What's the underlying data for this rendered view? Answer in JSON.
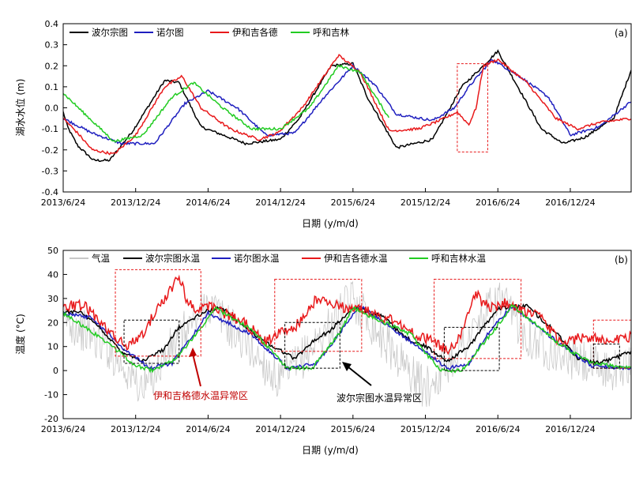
{
  "chart_data": [
    {
      "panel": "a",
      "type": "line",
      "panel_label": "(a)",
      "xlabel": "日期 (y/m/d)",
      "ylabel": "湖水水位 (m)",
      "x_ticks": [
        "2013/6/24",
        "2013/12/24",
        "2014/6/24",
        "2014/12/24",
        "2015/6/24",
        "2015/12/24",
        "2016/6/24",
        "2016/12/24"
      ],
      "ylim": [
        -0.4,
        0.4
      ],
      "y_ticks": [
        "-0.4",
        "-0.3",
        "-0.2",
        "-0.1",
        "0.0",
        "0.1",
        "0.2",
        "0.3",
        "0.4"
      ],
      "legend_position": "top-left",
      "series": [
        {
          "name": "波尔宗图",
          "color": "#000000",
          "x": [
            0,
            0.03,
            0.06,
            0.1,
            0.21,
            0.32,
            0.48,
            0.7,
            0.8,
            0.95,
            1.26,
            1.5,
            1.63,
            1.85,
            2.0,
            2.1,
            2.3,
            2.55,
            2.75,
            2.9,
            3.0,
            3.3,
            3.45,
            3.6,
            3.8,
            3.92
          ],
          "y": [
            -0.02,
            -0.09,
            -0.13,
            -0.18,
            -0.25,
            -0.25,
            -0.11,
            0.13,
            0.12,
            -0.09,
            -0.17,
            -0.15,
            -0.05,
            0.2,
            0.21,
            0.05,
            -0.19,
            -0.15,
            0.1,
            0.2,
            0.27,
            -0.1,
            -0.17,
            -0.14,
            -0.05,
            0.18
          ]
        },
        {
          "name": "诺尔图",
          "color": "#1f1fbf",
          "x": [
            0,
            0.2,
            0.4,
            0.63,
            0.84,
            1.0,
            1.2,
            1.4,
            1.6,
            1.8,
            2.0,
            2.15,
            2.3,
            2.55,
            2.7,
            2.8,
            2.96,
            3.15,
            3.35,
            3.5,
            3.7,
            3.92
          ],
          "y": [
            -0.05,
            -0.12,
            -0.17,
            -0.17,
            0.02,
            0.08,
            0.0,
            -0.13,
            -0.12,
            0.05,
            0.2,
            0.11,
            -0.03,
            -0.06,
            0.0,
            0.1,
            0.23,
            0.15,
            0.05,
            -0.13,
            -0.09,
            0.03
          ]
        },
        {
          "name": "伊和吉各德",
          "color": "#e8191b",
          "x": [
            0,
            0.1,
            0.2,
            0.35,
            0.5,
            0.7,
            0.82,
            0.95,
            1.15,
            1.35,
            1.48,
            1.65,
            1.9,
            2.05,
            2.25,
            2.45,
            2.6,
            2.72,
            2.8,
            2.85,
            2.9,
            3.0,
            3.2,
            3.4,
            3.55,
            3.7,
            3.92
          ],
          "y": [
            -0.05,
            -0.12,
            -0.2,
            -0.22,
            -0.13,
            0.1,
            0.15,
            0.0,
            -0.1,
            -0.15,
            -0.12,
            0.0,
            0.25,
            0.17,
            -0.11,
            -0.1,
            -0.06,
            -0.02,
            -0.08,
            0.0,
            0.2,
            0.23,
            0.12,
            -0.05,
            -0.1,
            -0.07,
            -0.05
          ]
        },
        {
          "name": "呼和吉林",
          "color": "#22cc22",
          "x": [
            0,
            0.15,
            0.35,
            0.55,
            0.75,
            0.9,
            1.1,
            1.3,
            1.5,
            1.7,
            1.9,
            2.05,
            2.25
          ],
          "y": [
            0.07,
            -0.03,
            -0.16,
            -0.13,
            0.05,
            0.12,
            0.0,
            -0.1,
            -0.1,
            0.0,
            0.2,
            0.17,
            -0.05
          ]
        }
      ],
      "highlight_box": {
        "x_range": [
          2.72,
          2.93
        ],
        "y_range": [
          -0.21,
          0.21
        ],
        "style": "red dashed"
      }
    },
    {
      "panel": "b",
      "type": "line",
      "panel_label": "(b)",
      "xlabel": "日期 (y/m/d)",
      "ylabel": "温度 (°C)",
      "x_ticks": [
        "2013/6/24",
        "2013/12/24",
        "2014/6/24",
        "2014/12/24",
        "2015/6/24",
        "2015/12/24",
        "2016/6/24",
        "2016/12/24"
      ],
      "ylim": [
        -20,
        50
      ],
      "y_ticks": [
        "-20",
        "-10",
        "0",
        "10",
        "20",
        "30",
        "40",
        "50"
      ],
      "legend_position": "top",
      "series": [
        {
          "name": "气温",
          "color": "#c8c8c8",
          "x": [
            0,
            0.3,
            0.55,
            0.75,
            1.0,
            1.25,
            1.5,
            1.75,
            2.0,
            2.25,
            2.5,
            2.75,
            3.0,
            3.25,
            3.5,
            3.75,
            3.92
          ],
          "y": [
            22,
            10,
            -8,
            10,
            28,
            12,
            -5,
            12,
            30,
            10,
            -8,
            10,
            30,
            12,
            5,
            0,
            2
          ]
        },
        {
          "name": "波尔宗图水温",
          "color": "#000000",
          "x": [
            0,
            0.1,
            0.25,
            0.4,
            0.55,
            0.7,
            0.78,
            0.85,
            1.0,
            1.1,
            1.3,
            1.45,
            1.6,
            1.72,
            1.85,
            2.0,
            2.2,
            2.35,
            2.5,
            2.65,
            2.8,
            2.9,
            3.0,
            3.2,
            3.4,
            3.55,
            3.7,
            3.92
          ],
          "y": [
            24,
            25,
            18,
            8,
            4,
            9,
            17,
            20,
            25,
            26,
            16,
            10,
            5,
            12,
            17,
            26,
            23,
            14,
            10,
            4,
            10,
            18,
            26,
            27,
            16,
            5,
            3,
            8
          ]
        },
        {
          "name": "诺尔图水温",
          "color": "#1f1fbf",
          "x": [
            0,
            0.2,
            0.4,
            0.6,
            0.75,
            0.9,
            1.0,
            1.3,
            1.55,
            1.75,
            1.9,
            2.05,
            2.4,
            2.65,
            2.8,
            2.95,
            3.1,
            3.45,
            3.65,
            3.92
          ],
          "y": [
            24,
            22,
            10,
            1,
            3,
            15,
            24,
            15,
            1,
            3,
            15,
            27,
            12,
            1,
            3,
            17,
            27,
            10,
            2,
            1
          ]
        },
        {
          "name": "伊和吉各德水温",
          "color": "#e8191b",
          "x": [
            0,
            0.15,
            0.35,
            0.45,
            0.55,
            0.65,
            0.8,
            0.85,
            0.9,
            1.0,
            1.25,
            1.4,
            1.5,
            1.6,
            1.75,
            1.85,
            1.95,
            2.05,
            2.3,
            2.45,
            2.55,
            2.65,
            2.75,
            2.85,
            2.9,
            2.95,
            3.05,
            3.3,
            3.45,
            3.55,
            3.7,
            3.92
          ],
          "y": [
            27,
            27,
            14,
            10,
            15,
            26,
            39,
            30,
            26,
            27,
            20,
            12,
            16,
            18,
            30,
            28,
            26,
            26,
            20,
            14,
            13,
            8,
            15,
            32,
            28,
            26,
            28,
            22,
            10,
            14,
            13,
            14
          ]
        },
        {
          "name": "呼和吉林水温",
          "color": "#22cc22",
          "x": [
            0,
            0.3,
            0.5,
            0.62,
            0.78,
            0.95,
            1.05,
            1.3,
            1.55,
            1.72,
            1.9,
            2.0,
            2.4,
            2.6,
            2.75,
            2.95,
            3.1,
            3.45,
            3.65,
            3.92
          ],
          "y": [
            24,
            12,
            2,
            0,
            5,
            18,
            26,
            17,
            1,
            1,
            15,
            26,
            15,
            0,
            0,
            15,
            27,
            10,
            3,
            1
          ]
        }
      ],
      "highlight_boxes": [
        {
          "x_range": [
            0.36,
            0.95
          ],
          "y_range": [
            6,
            42
          ],
          "style": "red dashed"
        },
        {
          "x_range": [
            1.46,
            2.06
          ],
          "y_range": [
            8,
            38
          ],
          "style": "red dashed"
        },
        {
          "x_range": [
            2.56,
            3.16
          ],
          "y_range": [
            5,
            38
          ],
          "style": "red dashed"
        },
        {
          "x_range": [
            3.66,
            3.92
          ],
          "y_range": [
            1,
            21
          ],
          "style": "red dashed"
        },
        {
          "x_range": [
            0.42,
            0.8
          ],
          "y_range": [
            3,
            21
          ],
          "style": "black dashed"
        },
        {
          "x_range": [
            1.53,
            1.91
          ],
          "y_range": [
            1,
            20
          ],
          "style": "black dashed"
        },
        {
          "x_range": [
            2.63,
            3.01
          ],
          "y_range": [
            0,
            18
          ],
          "style": "black dashed"
        },
        {
          "x_range": [
            3.66,
            3.84
          ],
          "y_range": [
            1,
            11
          ],
          "style": "black dashed"
        }
      ],
      "annotations": [
        {
          "text": "伊和吉格德水温异常区",
          "color": "#c00000"
        },
        {
          "text": "波尔宗图水温异常区",
          "color": "#000000"
        }
      ]
    }
  ]
}
